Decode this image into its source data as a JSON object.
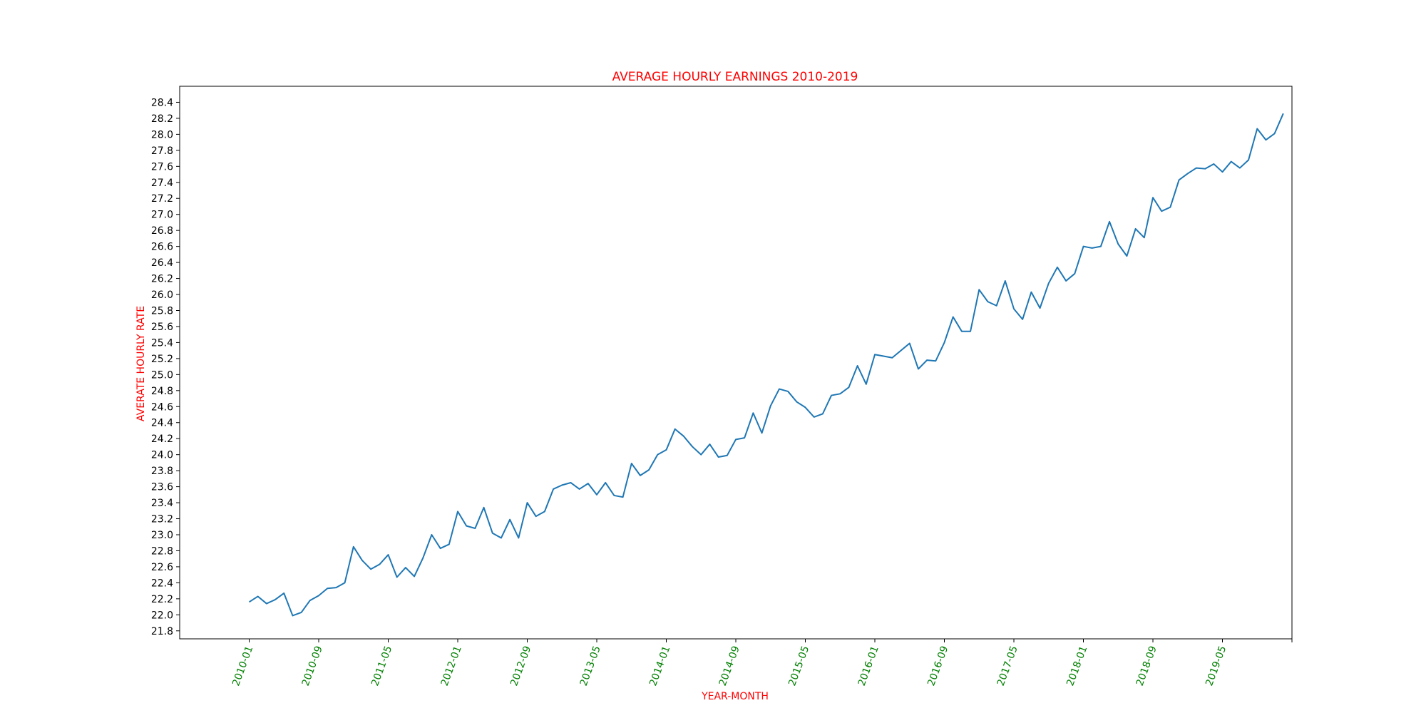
{
  "chart_data": {
    "type": "line",
    "title": "AVERAGE HOURLY EARNINGS 2010-2019",
    "xlabel": "YEAR-MONTH",
    "ylabel": "AVERATE HOURLY RATE",
    "colors": {
      "line": "#1f77b4",
      "title": "#ff0000",
      "axis_label": "#ff0000",
      "x_tick_label": "#008000",
      "y_tick_label": "#000000"
    },
    "grid": false,
    "legend": "none",
    "xlim": [
      "2009-05",
      "2020-01"
    ],
    "ylim": [
      21.7,
      28.6
    ],
    "x_tick_labels": [
      "2010-01",
      "2010-09",
      "2011-05",
      "2012-01",
      "2012-09",
      "2013-05",
      "2014-01",
      "2014-09",
      "2015-05",
      "2016-01",
      "2016-09",
      "2017-05",
      "2018-01",
      "2018-09",
      "2019-05",
      ""
    ],
    "x_tick_values": [
      "2010-01",
      "2010-09",
      "2011-05",
      "2012-01",
      "2012-09",
      "2013-05",
      "2014-01",
      "2014-09",
      "2015-05",
      "2016-01",
      "2016-09",
      "2017-05",
      "2018-01",
      "2018-09",
      "2019-05",
      "2020-01"
    ],
    "y_ticks": [
      21.8,
      22.0,
      22.2,
      22.4,
      22.6,
      22.8,
      23.0,
      23.2,
      23.4,
      23.6,
      23.8,
      24.0,
      24.2,
      24.4,
      24.6,
      24.8,
      25.0,
      25.2,
      25.4,
      25.6,
      25.8,
      26.0,
      26.2,
      26.4,
      26.6,
      26.8,
      27.0,
      27.2,
      27.4,
      27.6,
      27.8,
      28.0,
      28.2,
      28.4
    ],
    "x": [
      "2010-01",
      "2010-02",
      "2010-03",
      "2010-04",
      "2010-05",
      "2010-06",
      "2010-07",
      "2010-08",
      "2010-09",
      "2010-10",
      "2010-11",
      "2010-12",
      "2011-01",
      "2011-02",
      "2011-03",
      "2011-04",
      "2011-05",
      "2011-06",
      "2011-07",
      "2011-08",
      "2011-09",
      "2011-10",
      "2011-11",
      "2011-12",
      "2012-01",
      "2012-02",
      "2012-03",
      "2012-04",
      "2012-05",
      "2012-06",
      "2012-07",
      "2012-08",
      "2012-09",
      "2012-10",
      "2012-11",
      "2012-12",
      "2013-01",
      "2013-02",
      "2013-03",
      "2013-04",
      "2013-05",
      "2013-06",
      "2013-07",
      "2013-08",
      "2013-09",
      "2013-10",
      "2013-11",
      "2013-12",
      "2014-01",
      "2014-02",
      "2014-03",
      "2014-04",
      "2014-05",
      "2014-06",
      "2014-07",
      "2014-08",
      "2014-09",
      "2014-10",
      "2014-11",
      "2014-12",
      "2015-01",
      "2015-02",
      "2015-03",
      "2015-04",
      "2015-05",
      "2015-06",
      "2015-07",
      "2015-08",
      "2015-09",
      "2015-10",
      "2015-11",
      "2015-12",
      "2016-01",
      "2016-03",
      "2016-05",
      "2016-06",
      "2016-07",
      "2016-08",
      "2016-09",
      "2016-10",
      "2016-11",
      "2016-12",
      "2017-01",
      "2017-02",
      "2017-03",
      "2017-04",
      "2017-05",
      "2017-06",
      "2017-07",
      "2017-08",
      "2017-09",
      "2017-10",
      "2017-11",
      "2017-12",
      "2018-01",
      "2018-02",
      "2018-03",
      "2018-04",
      "2018-05",
      "2018-06",
      "2018-07",
      "2018-08",
      "2018-09",
      "2018-10",
      "2018-11",
      "2018-12",
      "2019-01",
      "2019-02",
      "2019-03",
      "2019-04",
      "2019-05",
      "2019-06",
      "2019-07",
      "2019-08",
      "2019-09",
      "2019-10",
      "2019-11",
      "2019-12"
    ],
    "values": [
      22.16,
      22.23,
      22.14,
      22.19,
      22.27,
      21.99,
      22.03,
      22.18,
      22.24,
      22.33,
      22.34,
      22.4,
      22.85,
      22.68,
      22.57,
      22.63,
      22.75,
      22.47,
      22.59,
      22.48,
      22.71,
      23.0,
      22.83,
      22.88,
      23.29,
      23.11,
      23.08,
      23.34,
      23.02,
      22.96,
      23.19,
      22.96,
      23.4,
      23.23,
      23.29,
      23.57,
      23.62,
      23.65,
      23.57,
      23.64,
      23.5,
      23.65,
      23.49,
      23.47,
      23.89,
      23.74,
      23.81,
      24.0,
      24.06,
      24.32,
      24.23,
      24.1,
      24.0,
      24.13,
      23.97,
      23.99,
      24.19,
      24.21,
      24.52,
      24.27,
      24.61,
      24.82,
      24.79,
      24.66,
      24.59,
      24.47,
      24.51,
      24.74,
      24.76,
      24.84,
      25.11,
      24.88,
      25.25,
      25.21,
      25.39,
      25.07,
      25.18,
      25.17,
      25.4,
      25.72,
      25.54,
      25.54,
      26.06,
      25.91,
      25.86,
      26.17,
      25.82,
      25.69,
      26.03,
      25.83,
      26.14,
      26.34,
      26.17,
      26.26,
      26.6,
      26.58,
      26.6,
      26.91,
      26.63,
      26.48,
      26.82,
      26.71,
      27.21,
      27.04,
      27.09,
      27.43,
      27.51,
      27.58,
      27.57,
      27.63,
      27.53,
      27.66,
      27.58,
      27.68,
      28.07,
      27.93,
      28.01,
      28.26
    ]
  }
}
